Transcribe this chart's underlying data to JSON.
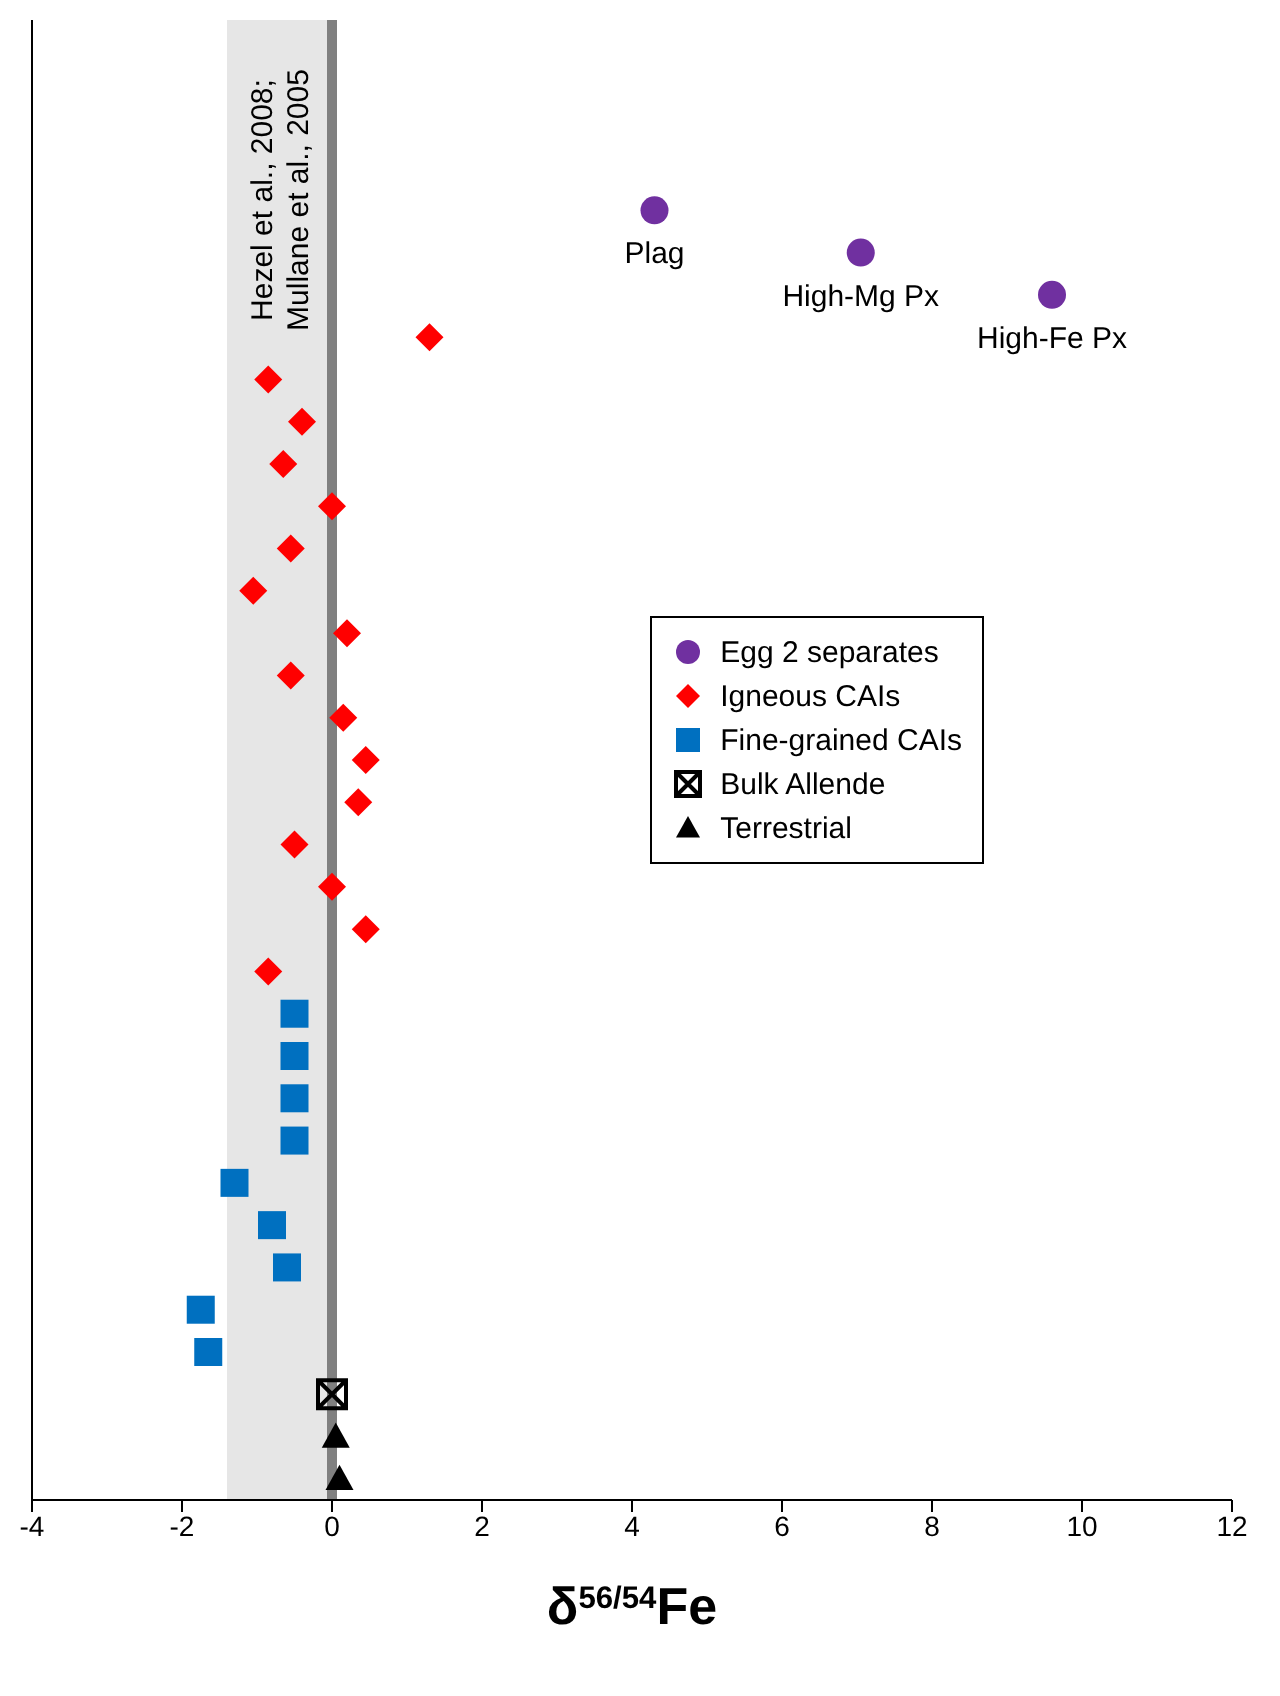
{
  "chart_data": {
    "type": "scatter",
    "orientation": "horizontal",
    "xlabel": "δ$^{56/54}$Fe",
    "categories": [
      null,
      null,
      null,
      null,
      null,
      null,
      null,
      null,
      null,
      null,
      null,
      null,
      null,
      null,
      null,
      null,
      null,
      null,
      null,
      null,
      null,
      null,
      null,
      null,
      null,
      null,
      null,
      null,
      null,
      null,
      null,
      null,
      null,
      null,
      null
    ],
    "series": [
      {
        "name": "Egg 2 separates",
        "color": "#7030a0",
        "marker": "circle",
        "values": [
          null,
          null,
          null,
          null,
          4.3,
          7.05,
          9.6,
          null,
          null,
          null,
          null,
          null,
          null,
          null,
          null,
          null,
          null,
          null,
          null,
          null,
          null,
          null,
          null,
          null,
          null,
          null,
          null,
          null,
          null,
          null,
          null,
          null,
          null,
          null,
          null
        ],
        "value_labels": [
          null,
          null,
          null,
          null,
          "Plag",
          "High-Mg Px",
          "High-Fe Px",
          null,
          null,
          null,
          null,
          null,
          null,
          null,
          null,
          null,
          null,
          null,
          null,
          null,
          null,
          null,
          null,
          null,
          null,
          null,
          null,
          null,
          null,
          null,
          null,
          null,
          null,
          null,
          null
        ]
      },
      {
        "name": "Igneous CAIs",
        "color": "#ff0000",
        "marker": "diamond",
        "values": [
          null,
          null,
          null,
          null,
          null,
          null,
          null,
          1.3,
          -0.85,
          -0.4,
          -0.65,
          0.0,
          -0.55,
          -1.05,
          0.2,
          -0.55,
          0.15,
          0.45,
          0.35,
          -0.5,
          0.0,
          0.45,
          -0.85,
          null,
          null,
          null,
          null,
          null,
          null,
          null,
          null,
          null,
          null,
          null,
          null
        ]
      },
      {
        "name": "Fine-grained CAIs",
        "color": "#0070c0",
        "marker": "square",
        "values": [
          null,
          null,
          null,
          null,
          null,
          null,
          null,
          null,
          null,
          null,
          null,
          null,
          null,
          null,
          null,
          null,
          null,
          null,
          null,
          null,
          null,
          null,
          null,
          -0.5,
          -0.5,
          -0.5,
          -0.5,
          -1.3,
          -0.8,
          -0.6,
          -1.75,
          -1.65,
          null,
          null,
          null
        ]
      },
      {
        "name": "Bulk Allende",
        "color": "#000000",
        "marker": "cross",
        "values": [
          null,
          null,
          null,
          null,
          null,
          null,
          null,
          null,
          null,
          null,
          null,
          null,
          null,
          null,
          null,
          null,
          null,
          null,
          null,
          null,
          null,
          null,
          null,
          null,
          null,
          null,
          null,
          null,
          null,
          null,
          null,
          null,
          0.0,
          null,
          null
        ]
      },
      {
        "name": "Terrestrial",
        "color": "#000000",
        "marker": "triangle",
        "values": [
          null,
          null,
          null,
          null,
          null,
          null,
          null,
          null,
          null,
          null,
          null,
          null,
          null,
          null,
          null,
          null,
          null,
          null,
          null,
          null,
          null,
          null,
          null,
          null,
          null,
          null,
          null,
          null,
          null,
          null,
          null,
          null,
          null,
          0.05,
          0.1
        ]
      }
    ],
    "xlim": [
      -4,
      12
    ],
    "xticks": [
      -4,
      -2,
      0,
      2,
      4,
      6,
      8,
      10,
      12
    ],
    "bands": [
      {
        "axis": "x",
        "from": -1.4,
        "to": 0,
        "label": "Hezel et al., 2008; Mullane et al., 2005",
        "color": "#e6e6e6"
      }
    ],
    "ref_lines": [
      {
        "axis": "x",
        "value": 0,
        "color": "#808080"
      }
    ],
    "legend": "right",
    "tick_labels": "x"
  }
}
